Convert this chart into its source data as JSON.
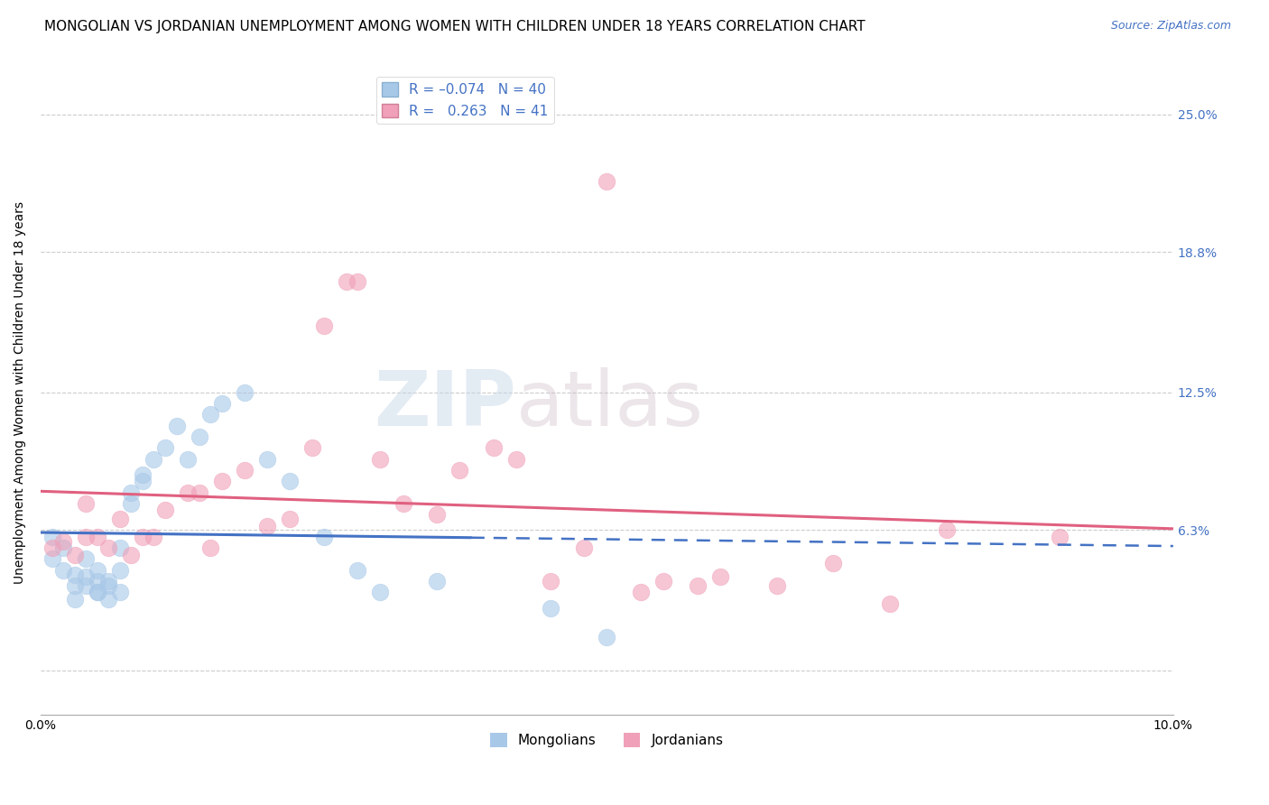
{
  "title": "MONGOLIAN VS JORDANIAN UNEMPLOYMENT AMONG WOMEN WITH CHILDREN UNDER 18 YEARS CORRELATION CHART",
  "source": "Source: ZipAtlas.com",
  "ylabel": "Unemployment Among Women with Children Under 18 years",
  "xlim": [
    0.0,
    0.1
  ],
  "ylim": [
    -0.02,
    0.27
  ],
  "ytick_labels": [
    "",
    "6.3%",
    "12.5%",
    "18.8%",
    "25.0%"
  ],
  "ytick_values": [
    0.0,
    0.063,
    0.125,
    0.188,
    0.25
  ],
  "xtick_labels": [
    "0.0%",
    "",
    "",
    "",
    "",
    "",
    "",
    "",
    "",
    "",
    "10.0%"
  ],
  "xtick_values": [
    0.0,
    0.01,
    0.02,
    0.03,
    0.04,
    0.05,
    0.06,
    0.07,
    0.08,
    0.09,
    0.1
  ],
  "mongolian_color": "#a8c8e8",
  "jordanian_color": "#f0a0b8",
  "mongolian_line_color": "#4472c4",
  "jordanian_line_color": "#e06080",
  "mongolian_R": -0.074,
  "mongolian_N": 40,
  "jordanian_R": 0.263,
  "jordanian_N": 41,
  "mongolian_x": [
    0.001,
    0.001,
    0.002,
    0.002,
    0.003,
    0.003,
    0.003,
    0.004,
    0.004,
    0.004,
    0.005,
    0.005,
    0.005,
    0.005,
    0.006,
    0.006,
    0.006,
    0.007,
    0.007,
    0.007,
    0.008,
    0.008,
    0.009,
    0.009,
    0.01,
    0.011,
    0.012,
    0.013,
    0.014,
    0.015,
    0.016,
    0.018,
    0.02,
    0.022,
    0.025,
    0.028,
    0.03,
    0.035,
    0.045,
    0.05
  ],
  "mongolian_y": [
    0.06,
    0.05,
    0.055,
    0.045,
    0.043,
    0.038,
    0.032,
    0.042,
    0.05,
    0.038,
    0.035,
    0.04,
    0.045,
    0.035,
    0.04,
    0.038,
    0.032,
    0.055,
    0.045,
    0.035,
    0.08,
    0.075,
    0.085,
    0.088,
    0.095,
    0.1,
    0.11,
    0.095,
    0.105,
    0.115,
    0.12,
    0.125,
    0.095,
    0.085,
    0.06,
    0.045,
    0.035,
    0.04,
    0.028,
    0.015
  ],
  "jordanian_x": [
    0.001,
    0.002,
    0.003,
    0.004,
    0.004,
    0.005,
    0.006,
    0.007,
    0.008,
    0.009,
    0.01,
    0.011,
    0.013,
    0.014,
    0.015,
    0.016,
    0.018,
    0.02,
    0.022,
    0.024,
    0.025,
    0.027,
    0.028,
    0.03,
    0.032,
    0.035,
    0.037,
    0.04,
    0.042,
    0.045,
    0.048,
    0.05,
    0.053,
    0.055,
    0.058,
    0.06,
    0.065,
    0.07,
    0.075,
    0.08,
    0.09
  ],
  "jordanian_y": [
    0.055,
    0.058,
    0.052,
    0.06,
    0.075,
    0.06,
    0.055,
    0.068,
    0.052,
    0.06,
    0.06,
    0.072,
    0.08,
    0.08,
    0.055,
    0.085,
    0.09,
    0.065,
    0.068,
    0.1,
    0.155,
    0.175,
    0.175,
    0.095,
    0.075,
    0.07,
    0.09,
    0.1,
    0.095,
    0.04,
    0.055,
    0.22,
    0.035,
    0.04,
    0.038,
    0.042,
    0.038,
    0.048,
    0.03,
    0.063,
    0.06
  ],
  "background_color": "#ffffff",
  "grid_color": "#cccccc",
  "watermark_zip": "ZIP",
  "watermark_atlas": "atlas",
  "title_fontsize": 11,
  "axis_label_fontsize": 10,
  "tick_fontsize": 10,
  "legend_fontsize": 11,
  "scatter_size": 180,
  "scatter_alpha": 0.6
}
